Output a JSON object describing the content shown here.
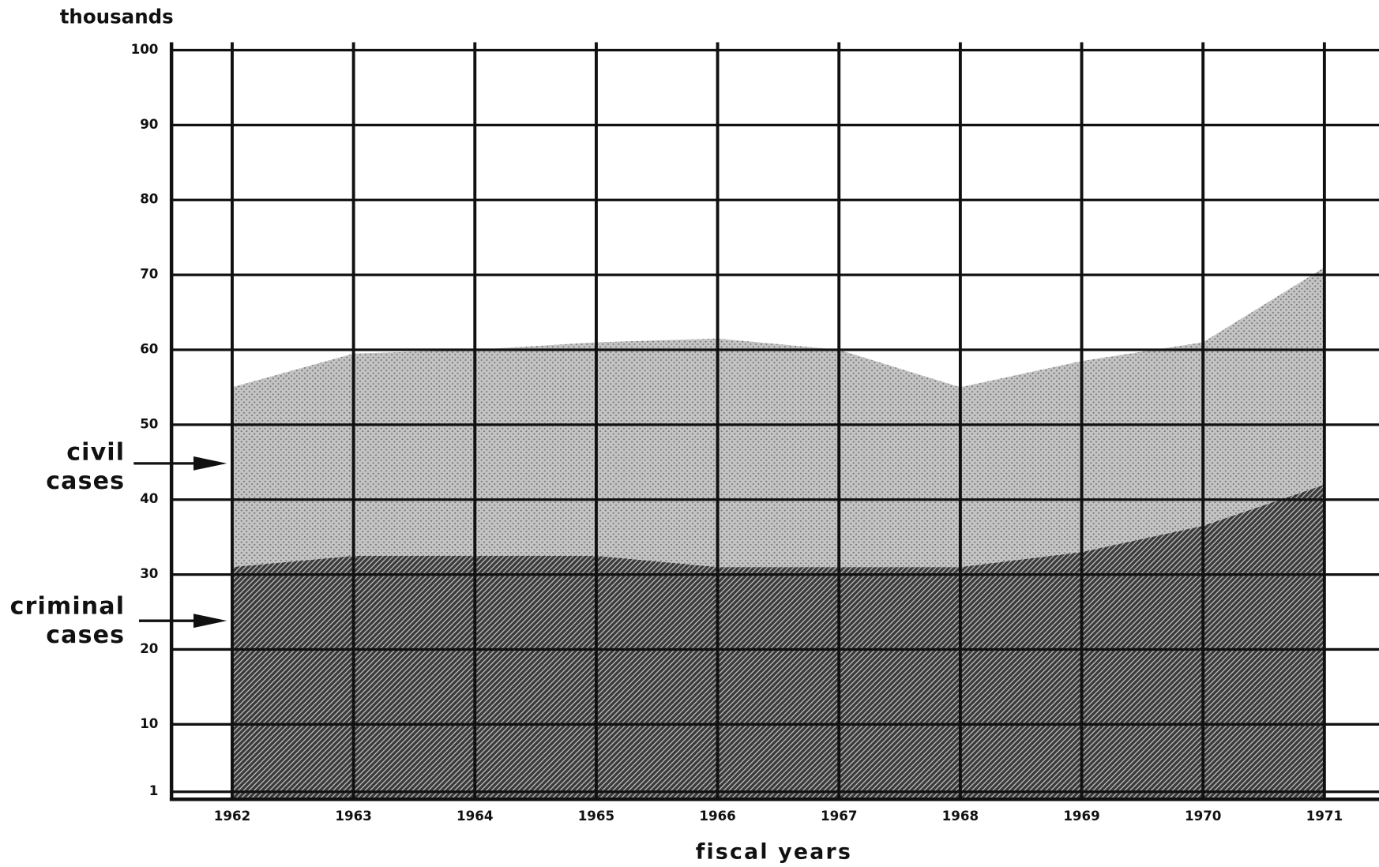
{
  "chart_data": {
    "type": "area",
    "stacked": true,
    "y_label": "thousands",
    "x_label": "fiscal years",
    "x": [
      1962,
      1963,
      1964,
      1965,
      1966,
      1967,
      1968,
      1969,
      1970,
      1971
    ],
    "series": [
      {
        "name": "criminal cases",
        "color": "#3a3a3a",
        "values": [
          31,
          32.5,
          32.5,
          32.5,
          31,
          31,
          31,
          33,
          36.5,
          42
        ]
      },
      {
        "name": "civil cases",
        "color": "#c4c4c4",
        "values": [
          24,
          27,
          27.5,
          28.5,
          30.5,
          29,
          24,
          25.5,
          24.5,
          29
        ]
      }
    ],
    "xlim": [
      1961.5,
      1971.45
    ],
    "xticks": [
      1962,
      1963,
      1964,
      1965,
      1966,
      1967,
      1968,
      1969,
      1970,
      1971
    ],
    "ylim": [
      0,
      100
    ],
    "yticks": [
      1,
      10,
      20,
      30,
      40,
      50,
      60,
      70,
      80,
      90,
      100
    ],
    "grid": true
  }
}
